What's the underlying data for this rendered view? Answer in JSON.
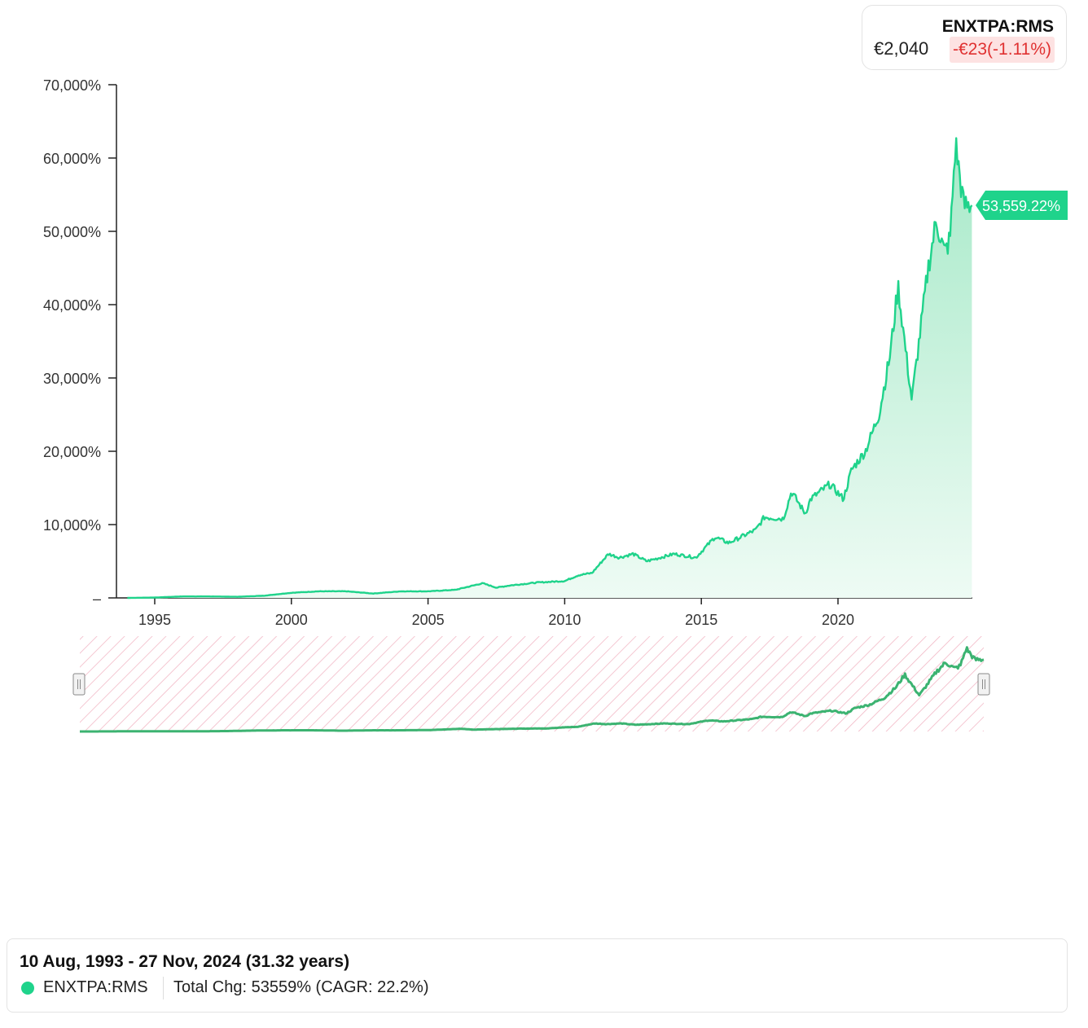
{
  "ticker": {
    "symbol": "ENXTPA:RMS",
    "price": "€2,040",
    "change": "-€23(-1.11%)",
    "change_color": "#e03131"
  },
  "colors": {
    "line": "#1fd38b",
    "fill_top": "#a6e9c8",
    "fill_bottom": "#eefbf4",
    "navigator_line": "#3cb371",
    "navigator_hatch": "#f2b8c6",
    "tag_bg": "#1fd38b"
  },
  "chart_data": {
    "type": "area",
    "title": "",
    "series": [
      {
        "name": "ENXTPA:RMS",
        "points": [
          [
            1994.0,
            0
          ],
          [
            1995.0,
            50
          ],
          [
            1996.0,
            200
          ],
          [
            1997.0,
            200
          ],
          [
            1998.0,
            150
          ],
          [
            1999.0,
            300
          ],
          [
            2000.0,
            700
          ],
          [
            2001.0,
            900
          ],
          [
            2002.0,
            900
          ],
          [
            2003.0,
            600
          ],
          [
            2004.0,
            900
          ],
          [
            2005.0,
            900
          ],
          [
            2006.0,
            1100
          ],
          [
            2007.0,
            2000
          ],
          [
            2007.5,
            1400
          ],
          [
            2008.0,
            1700
          ],
          [
            2009.0,
            2100
          ],
          [
            2010.0,
            2300
          ],
          [
            2010.5,
            3100
          ],
          [
            2011.0,
            3400
          ],
          [
            2011.6,
            6000
          ],
          [
            2012.0,
            5500
          ],
          [
            2012.5,
            6000
          ],
          [
            2013.0,
            5000
          ],
          [
            2014.0,
            6000
          ],
          [
            2014.8,
            5500
          ],
          [
            2015.5,
            8300
          ],
          [
            2016.0,
            7500
          ],
          [
            2017.0,
            9300
          ],
          [
            2017.3,
            11000
          ],
          [
            2018.0,
            10800
          ],
          [
            2018.3,
            14500
          ],
          [
            2018.8,
            11500
          ],
          [
            2019.0,
            13500
          ],
          [
            2019.7,
            15500
          ],
          [
            2020.2,
            13500
          ],
          [
            2020.5,
            17500
          ],
          [
            2021.0,
            20000
          ],
          [
            2021.5,
            25000
          ],
          [
            2021.9,
            33000
          ],
          [
            2022.2,
            42500
          ],
          [
            2022.5,
            33000
          ],
          [
            2022.7,
            27000
          ],
          [
            2023.0,
            36000
          ],
          [
            2023.3,
            45000
          ],
          [
            2023.6,
            51500
          ],
          [
            2023.9,
            47000
          ],
          [
            2024.1,
            49000
          ],
          [
            2024.3,
            62000
          ],
          [
            2024.6,
            53500
          ],
          [
            2024.9,
            53559.22
          ]
        ]
      }
    ],
    "xlim": [
      1992.6,
      2024.9
    ],
    "ylim": [
      0,
      70000
    ],
    "x_ticks": [
      1995,
      2000,
      2005,
      2010,
      2015,
      2020
    ],
    "x_tick_labels": [
      "1995",
      "2000",
      "2005",
      "2010",
      "2015",
      "2020"
    ],
    "y_ticks": [
      0,
      10000,
      20000,
      30000,
      40000,
      50000,
      60000,
      70000
    ],
    "y_tick_labels": [
      "–",
      "10,000%",
      "20,000%",
      "30,000%",
      "40,000%",
      "50,000%",
      "60,000%",
      "70,000%"
    ],
    "last_value_label": "53,559.22%",
    "xlabel": "",
    "ylabel": ""
  },
  "summary": {
    "date_range": "10 Aug, 1993 - 27 Nov, 2024 (31.32 years)",
    "series_name": "ENXTPA:RMS",
    "total_change": "Total Chg: 53559% (CAGR: 22.2%)"
  }
}
